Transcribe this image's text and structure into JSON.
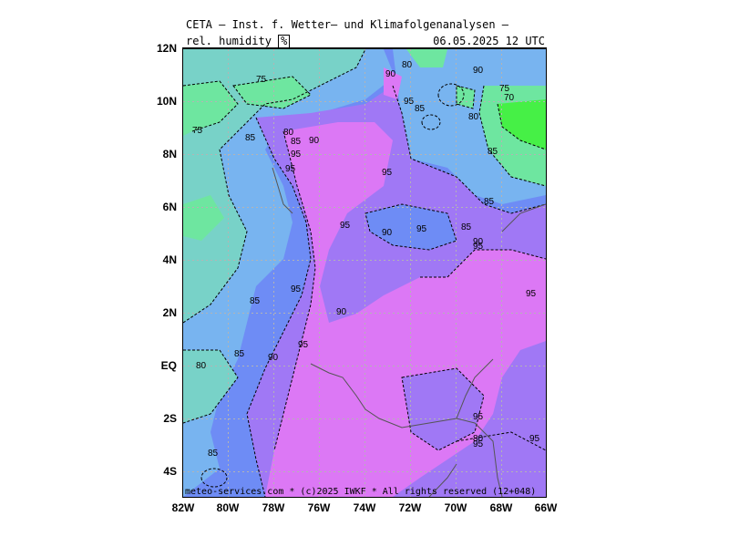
{
  "header": {
    "title": "CETA — Inst. f. Wetter— und Klimafolgenanalysen —",
    "parameter": "rel. humidity",
    "unit": "%",
    "datetime": "06.05.2025 12 UTC"
  },
  "map": {
    "lat_ticks": [
      "12N",
      "10N",
      "8N",
      "6N",
      "4N",
      "2N",
      "EQ",
      "2S",
      "4S"
    ],
    "lon_ticks": [
      "82W",
      "80W",
      "78W",
      "76W",
      "74W",
      "72W",
      "70W",
      "68W",
      "66W"
    ],
    "contour_levels": [
      70,
      75,
      80,
      85,
      90,
      95
    ],
    "contour_labels": [
      "75",
      "90",
      "95",
      "80",
      "90",
      "85",
      "75",
      "70",
      "75",
      "85",
      "80",
      "85",
      "90",
      "95",
      "95",
      "80",
      "85",
      "95",
      "90",
      "85",
      "95",
      "90",
      "95",
      "95",
      "85",
      "95",
      "90",
      "85",
      "80",
      "90",
      "95",
      "95",
      "95",
      "80",
      "85",
      "95",
      "95",
      "85"
    ],
    "colors": {
      "lt_70": "#46f046",
      "70_75": "#6ee6a0",
      "75_80": "#78d2c8",
      "80_85": "#78b4f0",
      "85_90": "#6e8cf5",
      "90_95": "#a078f5",
      "ge_95": "#dc78f5",
      "gridline": "#b4b4b4",
      "border": "#555555"
    }
  },
  "footer": {
    "text": "meteo-services.com * (c)2025 IWKF * All rights reserved (12+048)"
  }
}
